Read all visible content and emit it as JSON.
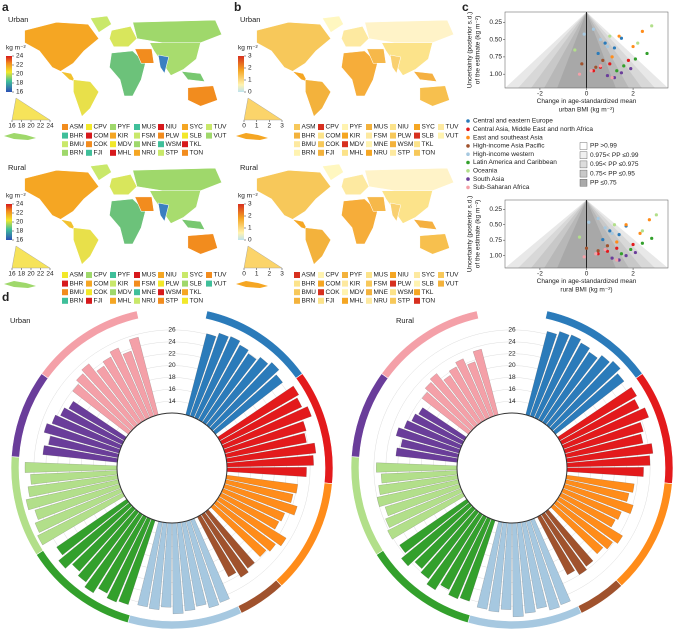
{
  "panel_labels": [
    "a",
    "b",
    "c",
    "d"
  ],
  "maps": [
    {
      "title": "Urban",
      "unit": "kg m⁻²",
      "clim": [
        16,
        24
      ],
      "cticks": [
        16,
        18,
        20,
        22,
        24
      ],
      "hist_ticks": [
        16,
        18,
        20,
        22,
        24
      ]
    },
    {
      "title": "Rural",
      "unit": "kg m⁻²",
      "clim": [
        16,
        24
      ],
      "cticks": [
        16,
        18,
        20,
        22,
        24
      ],
      "hist_ticks": [
        16,
        18,
        20,
        22,
        24
      ]
    },
    {
      "title": "Urban",
      "unit": "kg m⁻²",
      "clim": [
        0,
        3
      ],
      "cticks": [
        0,
        1,
        2,
        3
      ],
      "hist_ticks": [
        0,
        1,
        2,
        3
      ]
    },
    {
      "title": "Rural",
      "unit": "kg m⁻²",
      "clim": [
        0,
        3
      ],
      "cticks": [
        0,
        1,
        2,
        3
      ],
      "hist_ticks": [
        0,
        1,
        2,
        3
      ]
    }
  ],
  "island_codes": [
    [
      "ASM",
      "CPV",
      "PYF",
      "MUS",
      "NIU",
      "SYC",
      "TUV"
    ],
    [
      "BHR",
      "COM",
      "KIR",
      "FSM",
      "PLW",
      "SLB",
      "VUT"
    ],
    [
      "BMU",
      "COK",
      "MDV",
      "MNE",
      "WSM",
      "TKL"
    ],
    [
      "BRN",
      "FJI",
      "MHL",
      "NRU",
      "STP",
      "TON"
    ]
  ],
  "pp_legend": [
    "PP >0.99",
    "0.975< PP ≤0.99",
    "0.95< PP ≤0.975",
    "0.75< PP ≤0.95",
    "PP ≤0.75"
  ],
  "chart_data": [
    {
      "type": "scatter",
      "xlabel": "Change in age-standardized mean urban BMI (kg m⁻²)",
      "ylabel": [
        "Uncertainty (posterior s.d.)",
        "of the estimate (kg m⁻²)"
      ],
      "xlim": [
        -3.5,
        3.5
      ],
      "xticks": [
        -2,
        0,
        2
      ],
      "ylim": [
        1.2,
        0.1
      ],
      "yticks": [
        0.25,
        {
          "value": 0.5,
          "label": "0.50"
        },
        0.75,
        {
          "value": 1,
          "label": "1.00"
        }
      ],
      "series": [
        {
          "name": "Central and eastern Europe",
          "color": "#2b7bba",
          "x": [
            0.8,
            1.2,
            0.5,
            1.5
          ],
          "y": [
            0.55,
            0.62,
            0.7,
            0.48
          ]
        },
        {
          "name": "Central Asia, Middle East and north Africa",
          "color": "#e31a1c",
          "x": [
            1.0,
            0.6,
            1.8,
            0.3
          ],
          "y": [
            0.85,
            0.9,
            0.8,
            0.95
          ]
        },
        {
          "name": "East and southeast Asia",
          "color": "#ff8c1a",
          "x": [
            1.4,
            2.0,
            1.1,
            2.4
          ],
          "y": [
            0.45,
            0.6,
            0.75,
            0.38
          ]
        },
        {
          "name": "High-income Asia Pacific",
          "color": "#a0522d",
          "x": [
            0.4,
            -0.2,
            0.7
          ],
          "y": [
            0.9,
            0.85,
            0.8
          ]
        },
        {
          "name": "High-income western",
          "color": "#a6c8e0",
          "x": [
            0.3,
            0.6,
            -0.1,
            0.9
          ],
          "y": [
            0.35,
            0.5,
            0.42,
            0.6
          ]
        },
        {
          "name": "Latin America and Caribbean",
          "color": "#33a02c",
          "x": [
            1.6,
            2.1,
            1.3,
            2.6
          ],
          "y": [
            0.88,
            0.78,
            0.95,
            0.7
          ]
        },
        {
          "name": "Oceania",
          "color": "#b2df8a",
          "x": [
            2.2,
            1.0,
            2.8,
            -0.5
          ],
          "y": [
            0.55,
            0.45,
            0.3,
            0.65
          ]
        },
        {
          "name": "South Asia",
          "color": "#6a3d9a",
          "x": [
            0.9,
            1.5,
            1.2,
            1.9
          ],
          "y": [
            1.02,
            0.98,
            1.05,
            0.92
          ]
        },
        {
          "name": "Sub-Saharan Africa",
          "color": "#f4a0a8",
          "x": [
            0.2,
            -0.3,
            0.6,
            1.1
          ],
          "y": [
            0.95,
            1.0,
            0.88,
            1.05
          ]
        }
      ]
    },
    {
      "type": "scatter",
      "xlabel": "Change in age-standardized mean rural BMI (kg m⁻²)",
      "ylabel": [
        "Uncertainty (posterior s.d.)",
        "of the estimate (kg m⁻²)"
      ],
      "xlim": [
        -3.5,
        3.5
      ],
      "xticks": [
        -2,
        0,
        2
      ],
      "ylim": [
        1.2,
        0.1
      ],
      "yticks": [
        0.25,
        {
          "value": 0.5,
          "label": "0.50"
        },
        0.75,
        {
          "value": 1,
          "label": "1.00"
        }
      ],
      "series": [
        {
          "name": "Central and eastern Europe",
          "color": "#2b7bba",
          "x": [
            1.0,
            1.4,
            0.7,
            1.7
          ],
          "y": [
            0.6,
            0.66,
            0.74,
            0.52
          ]
        },
        {
          "name": "Central Asia, Middle East and north Africa",
          "color": "#e31a1c",
          "x": [
            1.3,
            0.9,
            2.0,
            0.5
          ],
          "y": [
            0.88,
            0.93,
            0.82,
            0.97
          ]
        },
        {
          "name": "East and southeast Asia",
          "color": "#ff8c1a",
          "x": [
            1.7,
            2.3,
            1.3,
            2.7
          ],
          "y": [
            0.5,
            0.64,
            0.78,
            0.42
          ]
        },
        {
          "name": "High-income Asia Pacific",
          "color": "#a0522d",
          "x": [
            0.5,
            0.0,
            0.9
          ],
          "y": [
            0.92,
            0.88,
            0.84
          ]
        },
        {
          "name": "High-income western",
          "color": "#a6c8e0",
          "x": [
            0.5,
            0.8,
            0.1,
            1.1
          ],
          "y": [
            0.4,
            0.55,
            0.46,
            0.64
          ]
        },
        {
          "name": "Latin America and Caribbean",
          "color": "#33a02c",
          "x": [
            1.9,
            2.4,
            1.5,
            2.8
          ],
          "y": [
            0.9,
            0.8,
            0.97,
            0.72
          ]
        },
        {
          "name": "Oceania",
          "color": "#b2df8a",
          "x": [
            2.4,
            1.2,
            3.0,
            -0.3
          ],
          "y": [
            0.6,
            0.5,
            0.34,
            0.7
          ]
        },
        {
          "name": "South Asia",
          "color": "#6a3d9a",
          "x": [
            1.1,
            1.7,
            1.4,
            2.1
          ],
          "y": [
            1.04,
            1.0,
            1.07,
            0.95
          ]
        },
        {
          "name": "Sub-Saharan Africa",
          "color": "#f4a0a8",
          "x": [
            0.4,
            -0.1,
            0.8,
            1.3
          ],
          "y": [
            0.97,
            1.02,
            0.9,
            1.07
          ]
        }
      ]
    },
    {
      "type": "polar_bar",
      "title": "Urban",
      "rlim": [
        12,
        28
      ],
      "rticks": [
        14,
        16,
        18,
        20,
        22,
        24,
        26
      ],
      "series": [
        {
          "name": "Central and eastern Europe",
          "color": "#2b7bba",
          "values": [
            26.1,
            26.8,
            27.0,
            26.4,
            25.9,
            26.6,
            27.2,
            26.3
          ]
        },
        {
          "name": "Central Asia, Middle East and north Africa",
          "color": "#e31a1c",
          "values": [
            27.4,
            26.9,
            27.8,
            26.2,
            25.8,
            27.1,
            26.6,
            25.4
          ]
        },
        {
          "name": "East and southeast Asia",
          "color": "#ff8c1a",
          "values": [
            24.1,
            23.6,
            24.8,
            23.2,
            22.9,
            25.3,
            24.4,
            23.8
          ]
        },
        {
          "name": "High-income Asia Pacific",
          "color": "#a0522d",
          "values": [
            23.9,
            24.5,
            23.4
          ]
        },
        {
          "name": "High-income western",
          "color": "#a6c8e0",
          "values": [
            26.8,
            27.1,
            26.4,
            26.9,
            27.3,
            26.2,
            26.7,
            26.5
          ]
        },
        {
          "name": "Latin America and Caribbean",
          "color": "#33a02c",
          "values": [
            26.9,
            27.2,
            26.5,
            27.6,
            26.8,
            26.1,
            27.4,
            26.3
          ]
        },
        {
          "name": "Oceania",
          "color": "#b2df8a",
          "values": [
            28.1,
            27.6,
            26.9,
            27.9,
            27.2,
            26.6,
            27.5
          ]
        },
        {
          "name": "South Asia",
          "color": "#6a3d9a",
          "values": [
            24.6,
            23.9,
            25.1,
            24.3,
            23.5,
            22.8
          ]
        },
        {
          "name": "Sub-Saharan Africa",
          "color": "#f4a0a8",
          "values": [
            23.9,
            24.6,
            25.2,
            23.4,
            24.1,
            24.9,
            23.6,
            25.5
          ]
        }
      ]
    },
    {
      "type": "polar_bar",
      "title": "Rural",
      "rlim": [
        12,
        28
      ],
      "rticks": [
        14,
        16,
        18,
        20,
        22,
        24,
        26
      ],
      "series": [
        {
          "name": "Central and eastern Europe",
          "color": "#2b7bba",
          "values": [
            26.5,
            27.1,
            27.3,
            26.8,
            26.2,
            27.0,
            27.5,
            26.6
          ]
        },
        {
          "name": "Central Asia, Middle East and north Africa",
          "color": "#e31a1c",
          "values": [
            27.0,
            26.4,
            27.3,
            25.7,
            25.2,
            26.6,
            26.0,
            24.9
          ]
        },
        {
          "name": "East and southeast Asia",
          "color": "#ff8c1a",
          "values": [
            23.5,
            22.9,
            24.1,
            22.6,
            22.2,
            24.6,
            23.8,
            23.1
          ]
        },
        {
          "name": "High-income Asia Pacific",
          "color": "#a0522d",
          "values": [
            23.5,
            24.0,
            23.0
          ]
        },
        {
          "name": "High-income western",
          "color": "#a6c8e0",
          "values": [
            27.2,
            27.5,
            26.8,
            27.3,
            27.8,
            26.6,
            27.1,
            26.9
          ]
        },
        {
          "name": "Latin America and Caribbean",
          "color": "#33a02c",
          "values": [
            26.3,
            26.6,
            25.8,
            27.0,
            26.1,
            25.5,
            26.8,
            25.7
          ]
        },
        {
          "name": "Oceania",
          "color": "#b2df8a",
          "values": [
            26.2,
            25.7,
            25.1,
            26.0,
            25.4,
            24.8,
            25.6
          ]
        },
        {
          "name": "South Asia",
          "color": "#6a3d9a",
          "values": [
            22.4,
            21.8,
            23.0,
            22.1,
            21.4,
            20.9
          ]
        },
        {
          "name": "Sub-Saharan Africa",
          "color": "#f4a0a8",
          "values": [
            21.9,
            22.6,
            23.1,
            21.5,
            22.2,
            22.9,
            21.7,
            23.4
          ]
        }
      ]
    }
  ]
}
